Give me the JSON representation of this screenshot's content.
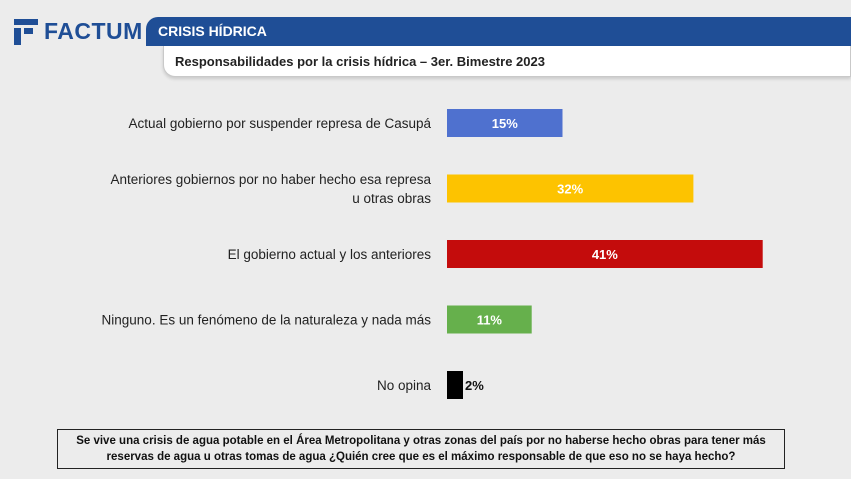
{
  "brand": {
    "logo_text": "FACTUM",
    "logo_color": "#1f4e96"
  },
  "header": {
    "section_title": "CRISIS HÍDRICA",
    "subtitle": "Responsabilidades por la crisis hídrica – 3er. Bimestre 2023"
  },
  "question": "Se vive una crisis de agua potable en el Área Metropolitana y otras zonas del país por no haberse hecho obras para tener más reservas de agua u otras tomas de agua ¿Quién cree que es el máximo responsable de que eso no se haya hecho?",
  "chart_data": {
    "type": "bar",
    "orientation": "horizontal",
    "title": "Responsabilidades por la crisis hídrica – 3er. Bimestre 2023",
    "xlabel": "",
    "ylabel": "",
    "xlim": [
      0,
      100
    ],
    "grid": false,
    "categories": [
      [
        "Actual gobierno por suspender represa de Casupá"
      ],
      [
        "Anteriores gobiernos por no haber hecho esa represa",
        "u otras obras"
      ],
      [
        "El gobierno actual y los anteriores"
      ],
      [
        "Ninguno. Es un fenómeno de la naturaleza y nada más"
      ],
      [
        "No opina"
      ]
    ],
    "values": [
      15,
      32,
      41,
      11,
      2
    ],
    "value_labels": [
      "15%",
      "32%",
      "41%",
      "11%",
      "2%"
    ],
    "colors": [
      "#4f71cf",
      "#fdc300",
      "#c40c0c",
      "#66b04c",
      "#000000"
    ],
    "label_colors": [
      "#ffffff",
      "#ffffff",
      "#ffffff",
      "#ffffff",
      "#111111"
    ]
  }
}
